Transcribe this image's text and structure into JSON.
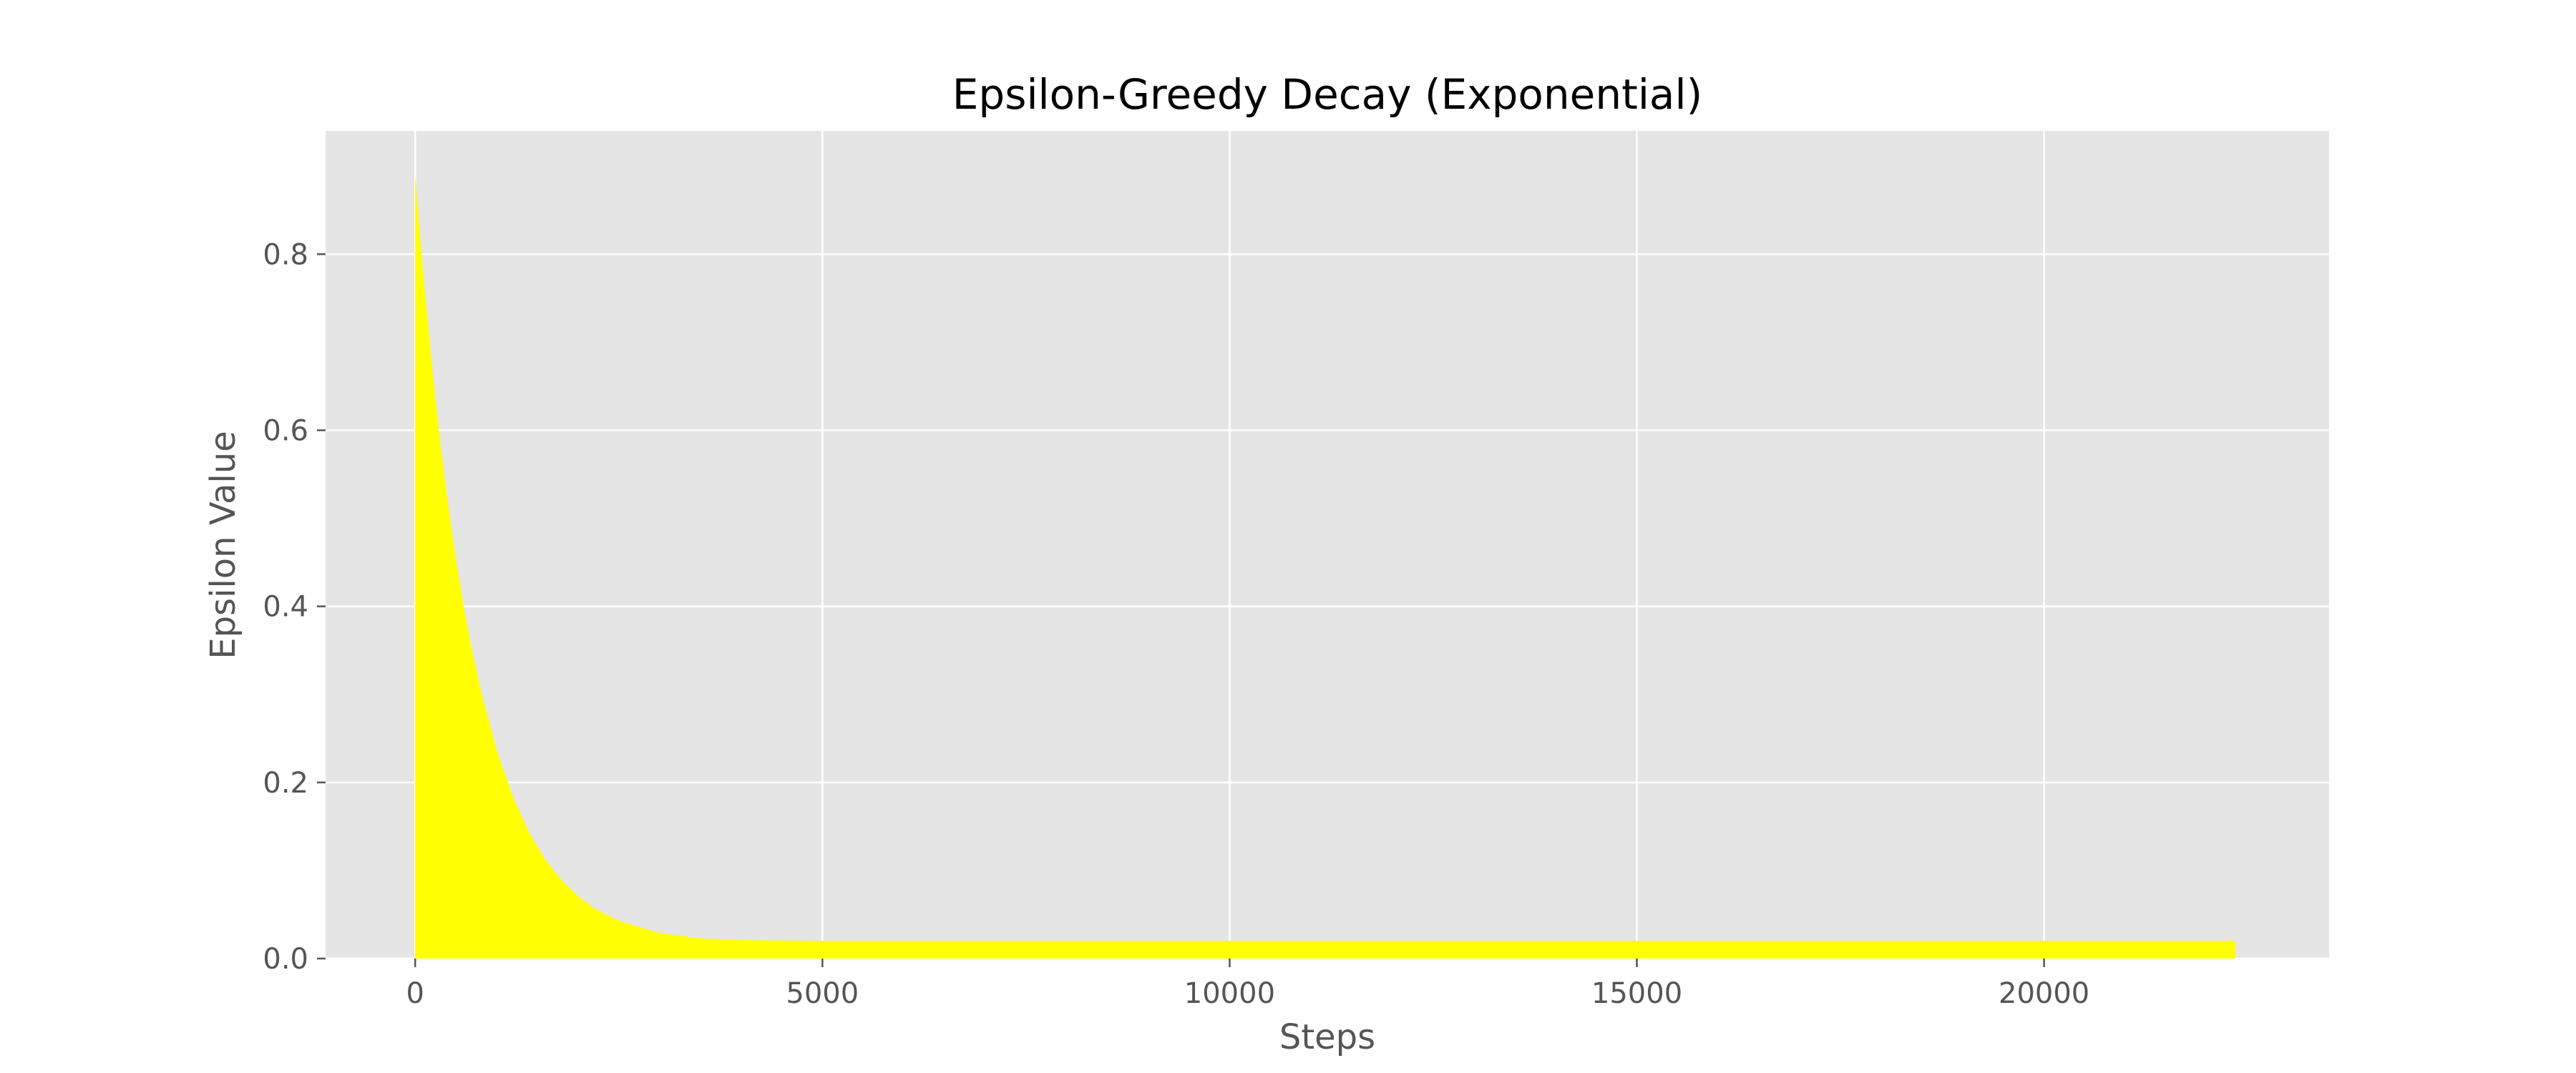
{
  "chart_data": {
    "type": "area",
    "title": "Epsilon-Greedy Decay (Exponential)",
    "xlabel": "Steps",
    "ylabel": "Epsilon Value",
    "xlim": [
      -1100,
      23500
    ],
    "ylim": [
      0.0,
      0.94
    ],
    "x_ticks": [
      0,
      5000,
      10000,
      15000,
      20000
    ],
    "x_tick_labels": [
      "0",
      "5000",
      "10000",
      "15000",
      "20000"
    ],
    "y_ticks": [
      0.0,
      0.2,
      0.4,
      0.6,
      0.8
    ],
    "y_tick_labels": [
      "0.0",
      "0.2",
      "0.4",
      "0.6",
      "0.8"
    ],
    "grid": true,
    "colors": {
      "fill": "#ffff00",
      "plot_bg": "#e5e5e5",
      "grid": "#ffffff"
    },
    "series": [
      {
        "x": [
          0,
          100,
          200,
          300,
          400,
          500,
          600,
          700,
          800,
          1000,
          1200,
          1400,
          1600,
          1800,
          2000,
          2200,
          2500,
          3000,
          3500,
          4000,
          5000,
          7500,
          10000,
          15000,
          20000,
          22350
        ],
        "values": [
          0.89,
          0.777,
          0.679,
          0.593,
          0.519,
          0.454,
          0.398,
          0.349,
          0.307,
          0.237,
          0.184,
          0.143,
          0.112,
          0.089,
          0.071,
          0.057,
          0.043,
          0.029,
          0.023,
          0.021,
          0.02,
          0.02,
          0.02,
          0.02,
          0.02,
          0.02
        ]
      }
    ]
  }
}
